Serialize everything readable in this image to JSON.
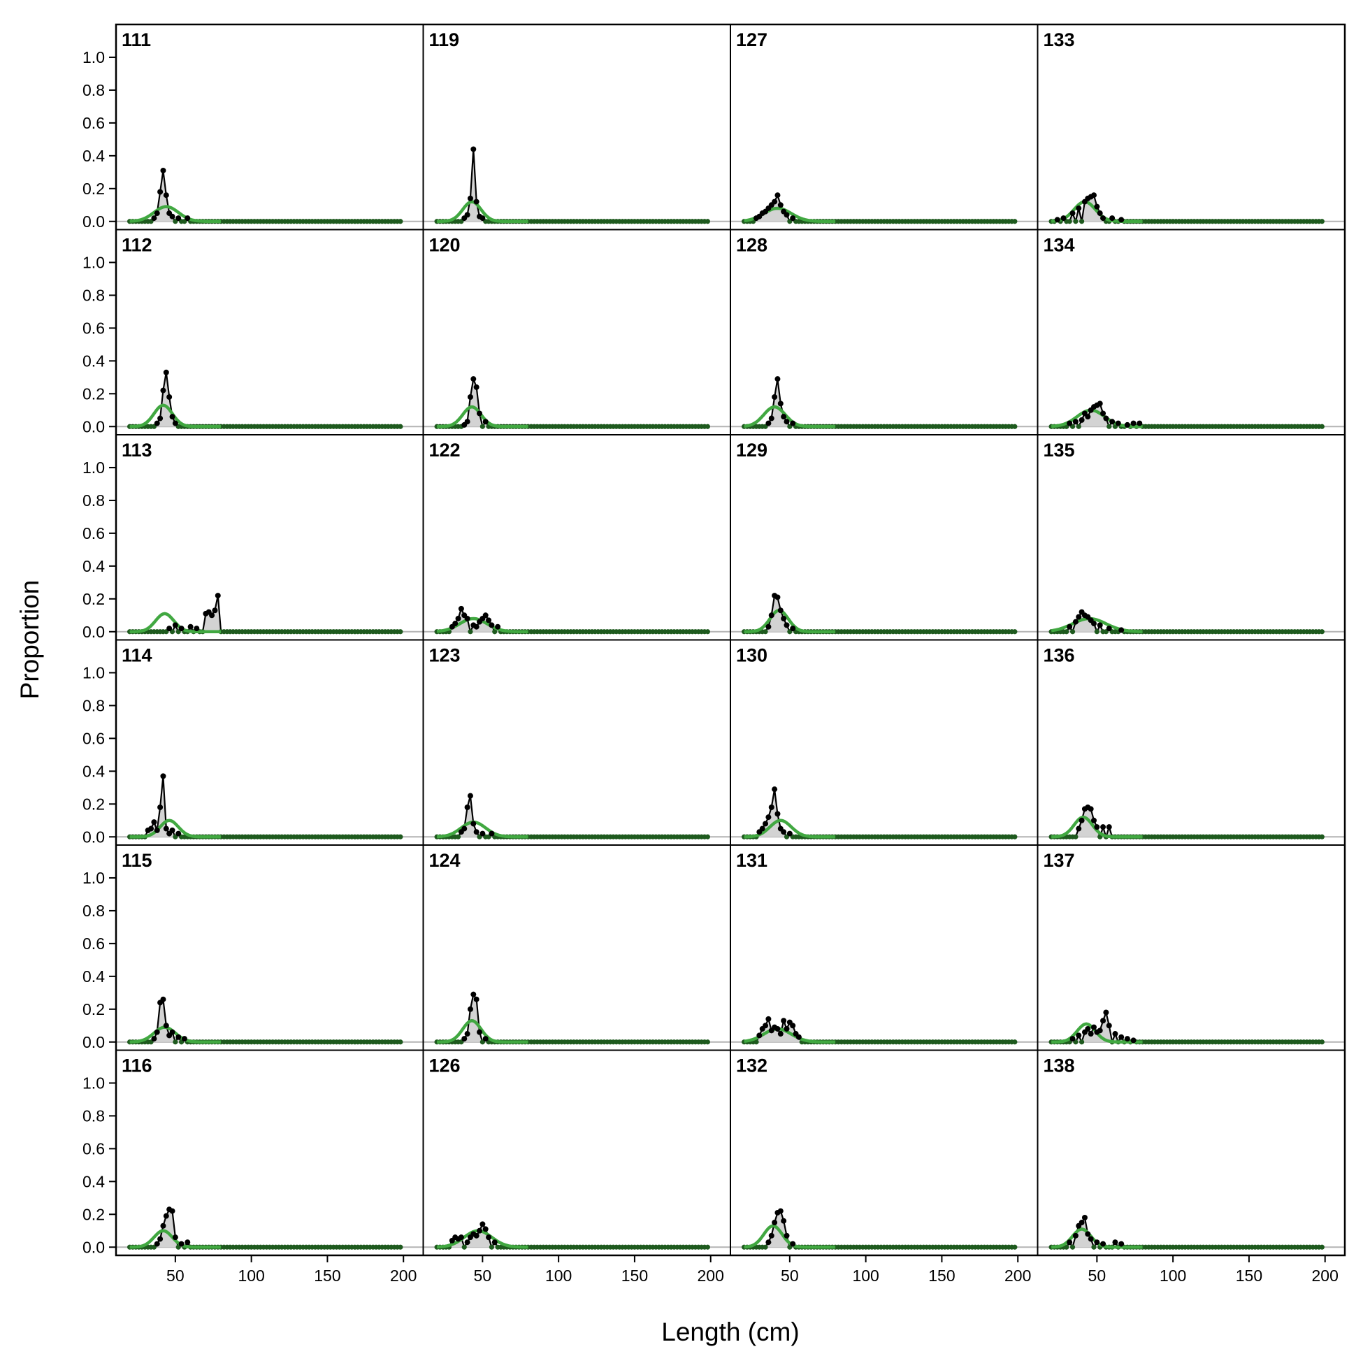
{
  "chart_data": {
    "type": "line",
    "layout": "small-multiples 6 rows x 4 columns",
    "xlabel": "Length (cm)",
    "ylabel": "Proportion",
    "xlim": [
      11,
      213
    ],
    "ylim": [
      -0.05,
      1.2
    ],
    "x_ticks": [
      50,
      100,
      150,
      200
    ],
    "y_ticks": [
      0.0,
      0.2,
      0.4,
      0.6,
      0.8,
      1.0
    ],
    "x_bins": {
      "start": 20,
      "end": 198,
      "step": 2
    },
    "colors": {
      "observed_fill": "#d3d3d3",
      "observed_line": "#000000",
      "observed_points": "#000000",
      "expected_line": "#41a841",
      "baseline_points": "#1e5a1e",
      "zero_line": "#b4b4b4"
    },
    "series_kinds": [
      "observed (grey area with black points)",
      "expected (green line)"
    ],
    "panels": [
      {
        "label": "111",
        "row": 0,
        "col": 0,
        "obs": [
          [
            36,
            0.02
          ],
          [
            38,
            0.05
          ],
          [
            40,
            0.18
          ],
          [
            42,
            0.31
          ],
          [
            44,
            0.16
          ],
          [
            46,
            0.05
          ],
          [
            48,
            0.03
          ],
          [
            52,
            0.02
          ],
          [
            58,
            0.02
          ]
        ],
        "exp": {
          "mean": 44,
          "sd": 8,
          "peak": 0.09
        }
      },
      {
        "label": "112",
        "row": 1,
        "col": 0,
        "obs": [
          [
            38,
            0.02
          ],
          [
            40,
            0.05
          ],
          [
            42,
            0.22
          ],
          [
            44,
            0.33
          ],
          [
            46,
            0.18
          ],
          [
            48,
            0.06
          ],
          [
            50,
            0.02
          ]
        ],
        "exp": {
          "mean": 42,
          "sd": 6,
          "peak": 0.13
        }
      },
      {
        "label": "113",
        "row": 2,
        "col": 0,
        "obs": [
          [
            46,
            0.02
          ],
          [
            50,
            0.04
          ],
          [
            54,
            0.02
          ],
          [
            60,
            0.03
          ],
          [
            64,
            0.02
          ],
          [
            70,
            0.11
          ],
          [
            72,
            0.12
          ],
          [
            74,
            0.1
          ],
          [
            76,
            0.13
          ],
          [
            78,
            0.22
          ]
        ],
        "exp": {
          "mean": 43,
          "sd": 6,
          "peak": 0.11
        }
      },
      {
        "label": "114",
        "row": 3,
        "col": 0,
        "obs": [
          [
            32,
            0.04
          ],
          [
            34,
            0.05
          ],
          [
            36,
            0.09
          ],
          [
            38,
            0.04
          ],
          [
            40,
            0.18
          ],
          [
            42,
            0.37
          ],
          [
            44,
            0.05
          ],
          [
            46,
            0.02
          ],
          [
            48,
            0.04
          ],
          [
            52,
            0.02
          ]
        ],
        "exp": {
          "mean": 46,
          "sd": 6,
          "peak": 0.1
        }
      },
      {
        "label": "115",
        "row": 4,
        "col": 0,
        "obs": [
          [
            36,
            0.02
          ],
          [
            38,
            0.06
          ],
          [
            40,
            0.24
          ],
          [
            42,
            0.26
          ],
          [
            44,
            0.1
          ],
          [
            46,
            0.04
          ],
          [
            48,
            0.06
          ],
          [
            52,
            0.03
          ],
          [
            56,
            0.02
          ]
        ],
        "exp": {
          "mean": 43,
          "sd": 7,
          "peak": 0.09
        }
      },
      {
        "label": "116",
        "row": 5,
        "col": 0,
        "obs": [
          [
            38,
            0.02
          ],
          [
            40,
            0.05
          ],
          [
            42,
            0.13
          ],
          [
            44,
            0.19
          ],
          [
            46,
            0.23
          ],
          [
            48,
            0.22
          ],
          [
            50,
            0.06
          ],
          [
            54,
            0.02
          ],
          [
            58,
            0.03
          ]
        ],
        "exp": {
          "mean": 42,
          "sd": 6,
          "peak": 0.1
        }
      },
      {
        "label": "119",
        "row": 0,
        "col": 1,
        "obs": [
          [
            38,
            0.02
          ],
          [
            40,
            0.04
          ],
          [
            42,
            0.14
          ],
          [
            44,
            0.44
          ],
          [
            46,
            0.12
          ],
          [
            48,
            0.03
          ],
          [
            50,
            0.02
          ]
        ],
        "exp": {
          "mean": 43,
          "sd": 6,
          "peak": 0.12
        }
      },
      {
        "label": "120",
        "row": 1,
        "col": 1,
        "obs": [
          [
            38,
            0.01
          ],
          [
            40,
            0.03
          ],
          [
            42,
            0.18
          ],
          [
            44,
            0.29
          ],
          [
            46,
            0.24
          ],
          [
            48,
            0.08
          ],
          [
            52,
            0.03
          ]
        ],
        "exp": {
          "mean": 43,
          "sd": 6,
          "peak": 0.12
        }
      },
      {
        "label": "122",
        "row": 2,
        "col": 1,
        "obs": [
          [
            30,
            0.03
          ],
          [
            32,
            0.05
          ],
          [
            34,
            0.08
          ],
          [
            36,
            0.14
          ],
          [
            38,
            0.1
          ],
          [
            40,
            0.08
          ],
          [
            44,
            0.04
          ],
          [
            46,
            0.03
          ],
          [
            48,
            0.06
          ],
          [
            50,
            0.08
          ],
          [
            52,
            0.1
          ],
          [
            54,
            0.07
          ],
          [
            56,
            0.04
          ],
          [
            60,
            0.03
          ]
        ],
        "exp": {
          "mean": 44,
          "sd": 9,
          "peak": 0.08
        }
      },
      {
        "label": "123",
        "row": 3,
        "col": 1,
        "obs": [
          [
            36,
            0.03
          ],
          [
            38,
            0.05
          ],
          [
            40,
            0.18
          ],
          [
            42,
            0.25
          ],
          [
            44,
            0.08
          ],
          [
            46,
            0.03
          ],
          [
            50,
            0.02
          ],
          [
            56,
            0.02
          ]
        ],
        "exp": {
          "mean": 44,
          "sd": 8,
          "peak": 0.09
        }
      },
      {
        "label": "124",
        "row": 4,
        "col": 1,
        "obs": [
          [
            38,
            0.02
          ],
          [
            40,
            0.05
          ],
          [
            42,
            0.2
          ],
          [
            44,
            0.29
          ],
          [
            46,
            0.26
          ],
          [
            48,
            0.06
          ],
          [
            52,
            0.02
          ]
        ],
        "exp": {
          "mean": 43,
          "sd": 6,
          "peak": 0.13
        }
      },
      {
        "label": "126",
        "row": 5,
        "col": 1,
        "obs": [
          [
            30,
            0.04
          ],
          [
            32,
            0.06
          ],
          [
            34,
            0.05
          ],
          [
            36,
            0.06
          ],
          [
            40,
            0.03
          ],
          [
            42,
            0.06
          ],
          [
            44,
            0.08
          ],
          [
            46,
            0.07
          ],
          [
            48,
            0.1
          ],
          [
            50,
            0.14
          ],
          [
            52,
            0.11
          ],
          [
            54,
            0.06
          ],
          [
            58,
            0.03
          ]
        ],
        "exp": {
          "mean": 47,
          "sd": 9,
          "peak": 0.1
        }
      },
      {
        "label": "127",
        "row": 0,
        "col": 2,
        "obs": [
          [
            28,
            0.02
          ],
          [
            30,
            0.03
          ],
          [
            32,
            0.05
          ],
          [
            34,
            0.06
          ],
          [
            36,
            0.08
          ],
          [
            38,
            0.1
          ],
          [
            40,
            0.12
          ],
          [
            42,
            0.16
          ],
          [
            44,
            0.1
          ],
          [
            46,
            0.06
          ],
          [
            48,
            0.04
          ],
          [
            52,
            0.02
          ]
        ],
        "exp": {
          "mean": 42,
          "sd": 9,
          "peak": 0.08
        }
      },
      {
        "label": "128",
        "row": 1,
        "col": 2,
        "obs": [
          [
            36,
            0.02
          ],
          [
            38,
            0.05
          ],
          [
            40,
            0.18
          ],
          [
            42,
            0.29
          ],
          [
            44,
            0.14
          ],
          [
            46,
            0.06
          ],
          [
            48,
            0.03
          ],
          [
            52,
            0.02
          ]
        ],
        "exp": {
          "mean": 40,
          "sd": 7,
          "peak": 0.12
        }
      },
      {
        "label": "129",
        "row": 2,
        "col": 2,
        "obs": [
          [
            36,
            0.03
          ],
          [
            38,
            0.1
          ],
          [
            40,
            0.22
          ],
          [
            42,
            0.21
          ],
          [
            44,
            0.13
          ],
          [
            46,
            0.08
          ],
          [
            48,
            0.04
          ],
          [
            52,
            0.02
          ]
        ],
        "exp": {
          "mean": 43,
          "sd": 6,
          "peak": 0.13
        }
      },
      {
        "label": "130",
        "row": 3,
        "col": 2,
        "obs": [
          [
            30,
            0.03
          ],
          [
            32,
            0.05
          ],
          [
            34,
            0.08
          ],
          [
            36,
            0.12
          ],
          [
            38,
            0.18
          ],
          [
            40,
            0.29
          ],
          [
            42,
            0.14
          ],
          [
            44,
            0.05
          ],
          [
            46,
            0.03
          ],
          [
            50,
            0.02
          ]
        ],
        "exp": {
          "mean": 44,
          "sd": 7,
          "peak": 0.1
        }
      },
      {
        "label": "131",
        "row": 4,
        "col": 2,
        "obs": [
          [
            30,
            0.04
          ],
          [
            32,
            0.08
          ],
          [
            34,
            0.1
          ],
          [
            36,
            0.14
          ],
          [
            38,
            0.07
          ],
          [
            40,
            0.09
          ],
          [
            42,
            0.08
          ],
          [
            44,
            0.05
          ],
          [
            46,
            0.13
          ],
          [
            48,
            0.08
          ],
          [
            50,
            0.12
          ],
          [
            52,
            0.1
          ],
          [
            54,
            0.05
          ],
          [
            56,
            0.03
          ]
        ],
        "exp": {
          "mean": 42,
          "sd": 9,
          "peak": 0.08
        }
      },
      {
        "label": "132",
        "row": 5,
        "col": 2,
        "obs": [
          [
            36,
            0.03
          ],
          [
            38,
            0.07
          ],
          [
            40,
            0.15
          ],
          [
            42,
            0.21
          ],
          [
            44,
            0.22
          ],
          [
            46,
            0.16
          ],
          [
            48,
            0.07
          ],
          [
            52,
            0.02
          ]
        ],
        "exp": {
          "mean": 39,
          "sd": 6,
          "peak": 0.13
        }
      },
      {
        "label": "133",
        "row": 0,
        "col": 3,
        "obs": [
          [
            24,
            0.01
          ],
          [
            28,
            0.02
          ],
          [
            34,
            0.05
          ],
          [
            38,
            0.08
          ],
          [
            42,
            0.12
          ],
          [
            44,
            0.14
          ],
          [
            46,
            0.15
          ],
          [
            48,
            0.16
          ],
          [
            50,
            0.09
          ],
          [
            52,
            0.05
          ],
          [
            54,
            0.02
          ],
          [
            60,
            0.02
          ],
          [
            66,
            0.01
          ]
        ],
        "exp": {
          "mean": 42,
          "sd": 7,
          "peak": 0.12
        }
      },
      {
        "label": "134",
        "row": 1,
        "col": 3,
        "obs": [
          [
            32,
            0.02
          ],
          [
            36,
            0.03
          ],
          [
            40,
            0.04
          ],
          [
            42,
            0.08
          ],
          [
            44,
            0.06
          ],
          [
            46,
            0.1
          ],
          [
            48,
            0.12
          ],
          [
            50,
            0.13
          ],
          [
            52,
            0.14
          ],
          [
            54,
            0.08
          ],
          [
            56,
            0.05
          ],
          [
            60,
            0.03
          ],
          [
            64,
            0.02
          ],
          [
            70,
            0.01
          ],
          [
            74,
            0.02
          ],
          [
            78,
            0.02
          ]
        ],
        "exp": {
          "mean": 46,
          "sd": 9,
          "peak": 0.1
        }
      },
      {
        "label": "135",
        "row": 2,
        "col": 3,
        "obs": [
          [
            32,
            0.03
          ],
          [
            36,
            0.06
          ],
          [
            38,
            0.09
          ],
          [
            40,
            0.12
          ],
          [
            42,
            0.1
          ],
          [
            44,
            0.09
          ],
          [
            46,
            0.07
          ],
          [
            48,
            0.05
          ],
          [
            52,
            0.04
          ],
          [
            58,
            0.02
          ],
          [
            66,
            0.01
          ]
        ],
        "exp": {
          "mean": 45,
          "sd": 11,
          "peak": 0.08
        }
      },
      {
        "label": "136",
        "row": 3,
        "col": 3,
        "obs": [
          [
            38,
            0.05
          ],
          [
            40,
            0.1
          ],
          [
            42,
            0.17
          ],
          [
            44,
            0.18
          ],
          [
            46,
            0.17
          ],
          [
            48,
            0.1
          ],
          [
            50,
            0.06
          ],
          [
            54,
            0.06
          ],
          [
            58,
            0.06
          ]
        ],
        "exp": {
          "mean": 41,
          "sd": 6,
          "peak": 0.12
        }
      },
      {
        "label": "137",
        "row": 4,
        "col": 3,
        "obs": [
          [
            34,
            0.02
          ],
          [
            38,
            0.04
          ],
          [
            42,
            0.06
          ],
          [
            44,
            0.08
          ],
          [
            46,
            0.05
          ],
          [
            48,
            0.09
          ],
          [
            50,
            0.06
          ],
          [
            52,
            0.07
          ],
          [
            54,
            0.13
          ],
          [
            56,
            0.18
          ],
          [
            58,
            0.1
          ],
          [
            62,
            0.05
          ],
          [
            66,
            0.03
          ],
          [
            70,
            0.02
          ],
          [
            74,
            0.01
          ]
        ],
        "exp": {
          "mean": 43,
          "sd": 6,
          "peak": 0.11
        }
      },
      {
        "label": "138",
        "row": 5,
        "col": 3,
        "obs": [
          [
            32,
            0.03
          ],
          [
            36,
            0.07
          ],
          [
            38,
            0.13
          ],
          [
            40,
            0.15
          ],
          [
            42,
            0.18
          ],
          [
            44,
            0.08
          ],
          [
            46,
            0.05
          ],
          [
            50,
            0.03
          ],
          [
            54,
            0.02
          ],
          [
            62,
            0.03
          ],
          [
            66,
            0.02
          ]
        ],
        "exp": {
          "mean": 40,
          "sd": 6,
          "peak": 0.11
        }
      }
    ]
  }
}
